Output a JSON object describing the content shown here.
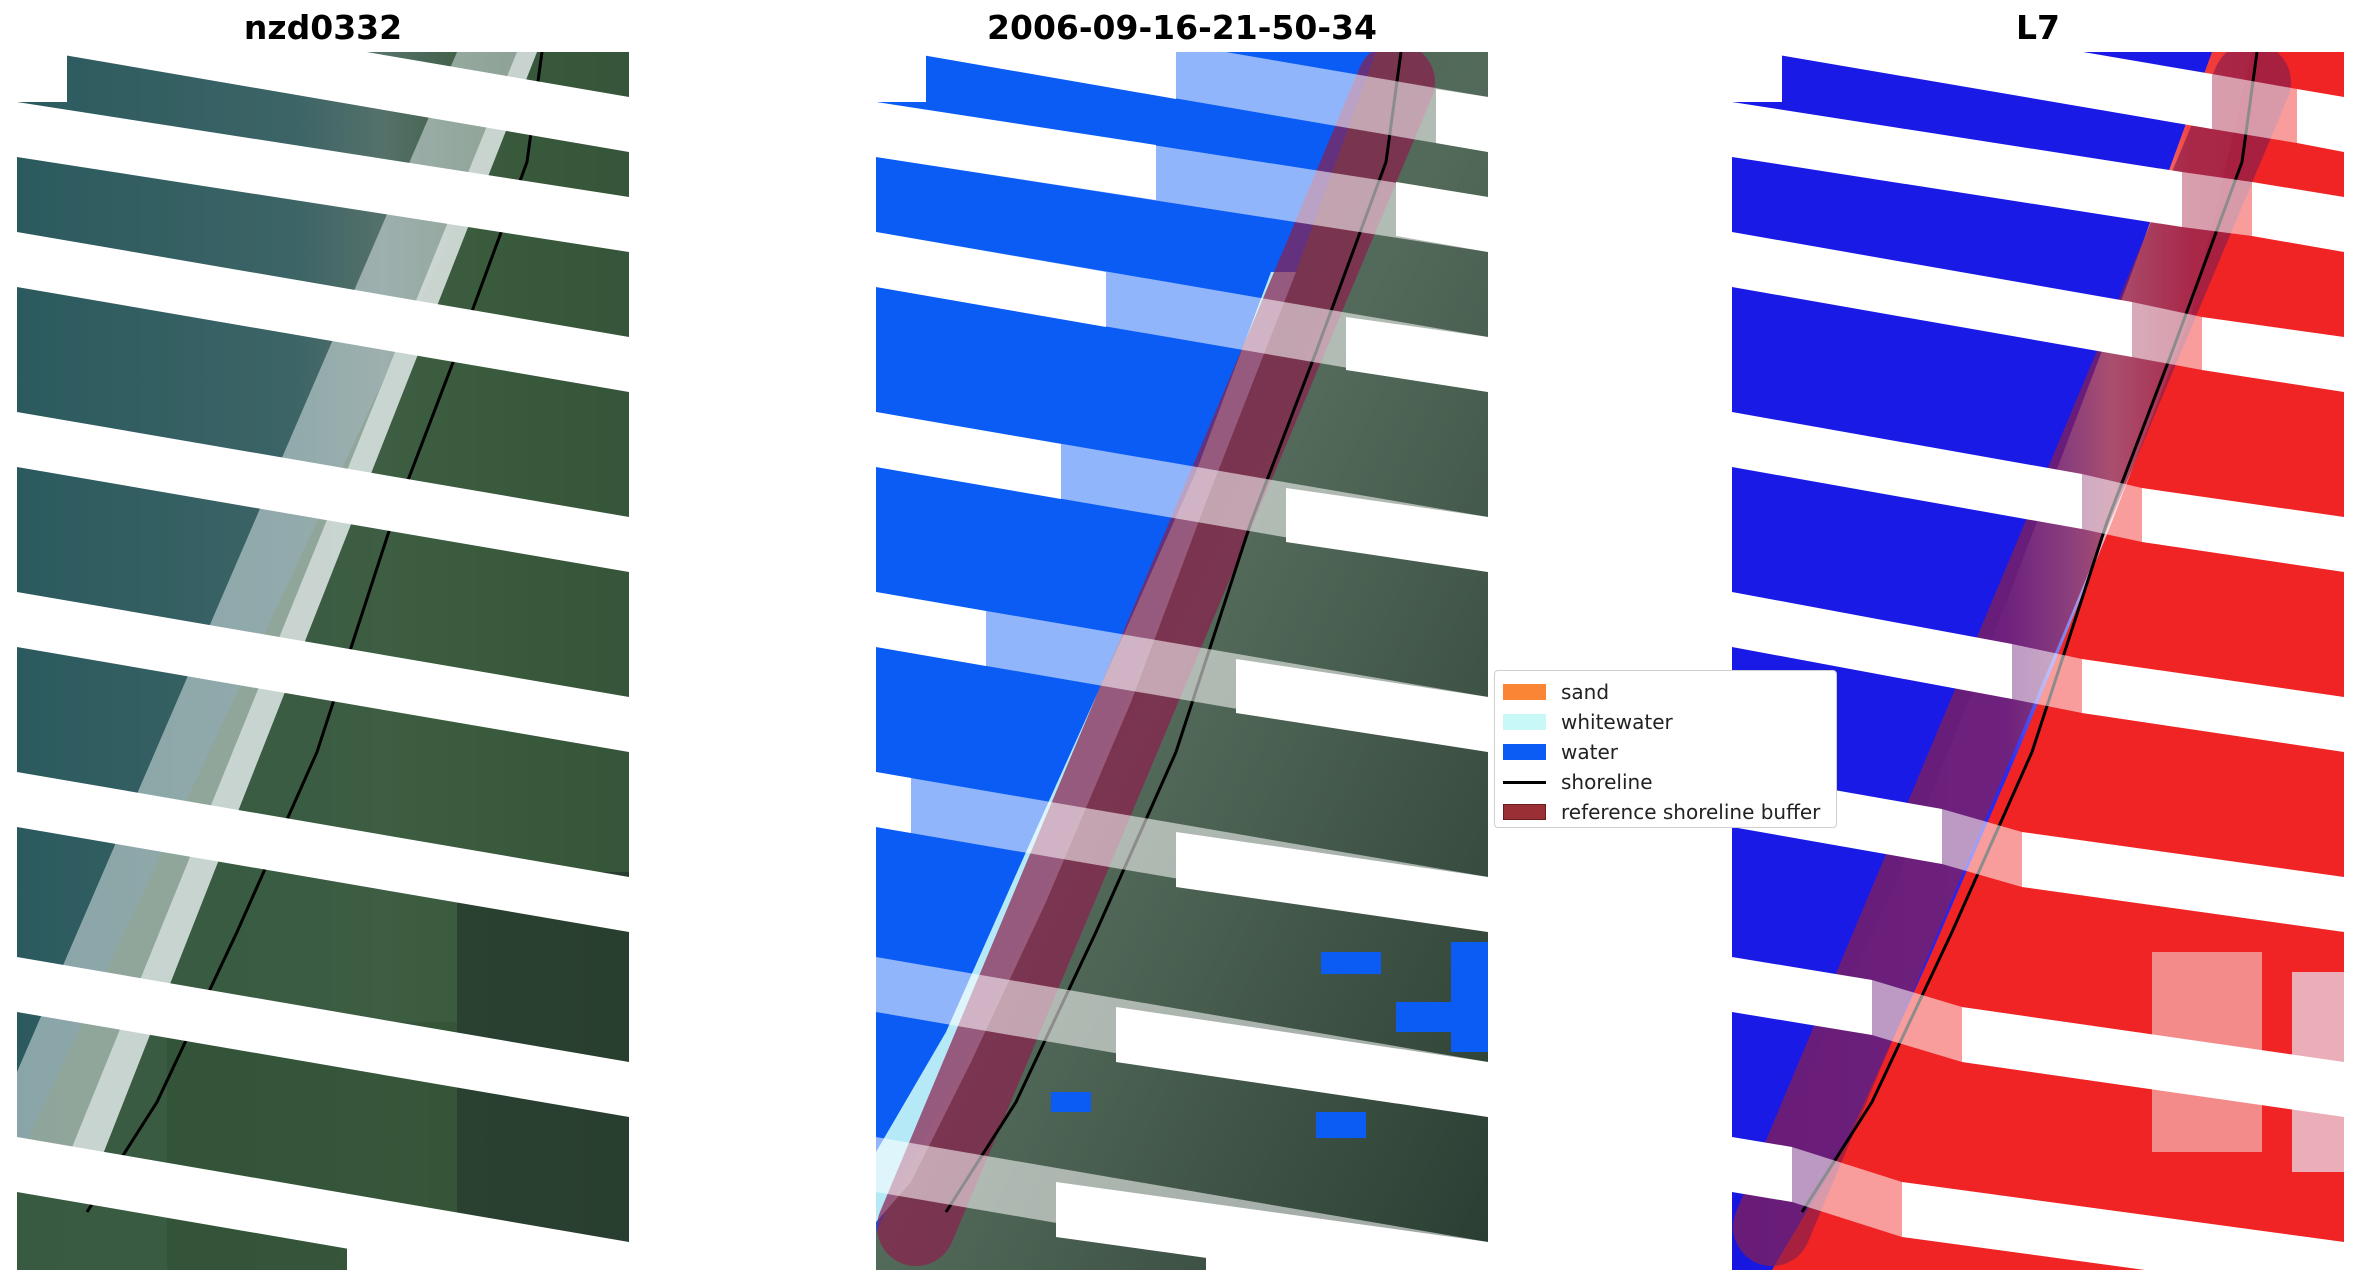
{
  "panels": [
    {
      "title": "nzd0332"
    },
    {
      "title": "2006-09-16-21-50-34"
    },
    {
      "title": "L7"
    }
  ],
  "legend": {
    "items": [
      {
        "label": "sand",
        "color": "#f98535",
        "kind": "patch"
      },
      {
        "label": "whitewater",
        "color": "#c8f8f8",
        "kind": "patch"
      },
      {
        "label": "water",
        "color": "#0a5cf5",
        "kind": "patch"
      },
      {
        "label": "shoreline",
        "color": "#000000",
        "kind": "line"
      },
      {
        "label": "reference shoreline buffer",
        "color": "#9b2f36",
        "kind": "patch"
      }
    ]
  },
  "colors": {
    "rgb_water": "#2a5a5e",
    "rgb_land": "#3a5a3c",
    "rgb_surf": "#dce8ec",
    "class_water": "#0a5cf5",
    "class_whitewater": "#c8f8f8",
    "index_water": "#1a1ae6",
    "index_land": "#f02020",
    "buffer": "#8b1f4d"
  }
}
